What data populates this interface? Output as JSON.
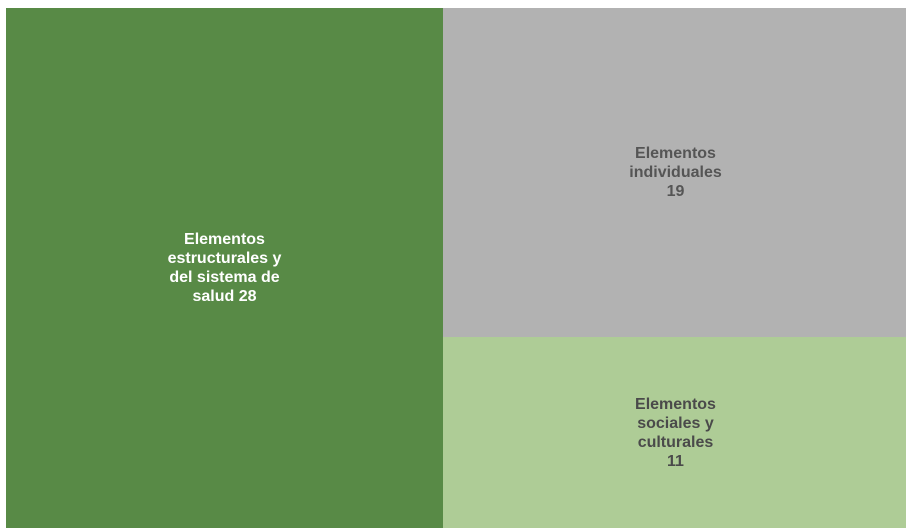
{
  "chart_data": {
    "type": "treemap",
    "title": "",
    "items": [
      {
        "name": "Elementos estructurales y del sistema de salud",
        "value": 28,
        "label_lines": [
          "Elementos",
          "estructurales y",
          "del sistema de",
          "salud 28"
        ],
        "color": "#588a46",
        "text_color": "#ffffff"
      },
      {
        "name": "Elementos individuales",
        "value": 19,
        "label_lines": [
          "Elementos",
          "individuales",
          "19"
        ],
        "color": "#b2b2b2",
        "text_color": "#555555"
      },
      {
        "name": "Elementos sociales y culturales",
        "value": 11,
        "label_lines": [
          "Elementos",
          "sociales y",
          "culturales",
          "11"
        ],
        "color": "#aecc96",
        "text_color": "#4a4a4a"
      }
    ]
  }
}
